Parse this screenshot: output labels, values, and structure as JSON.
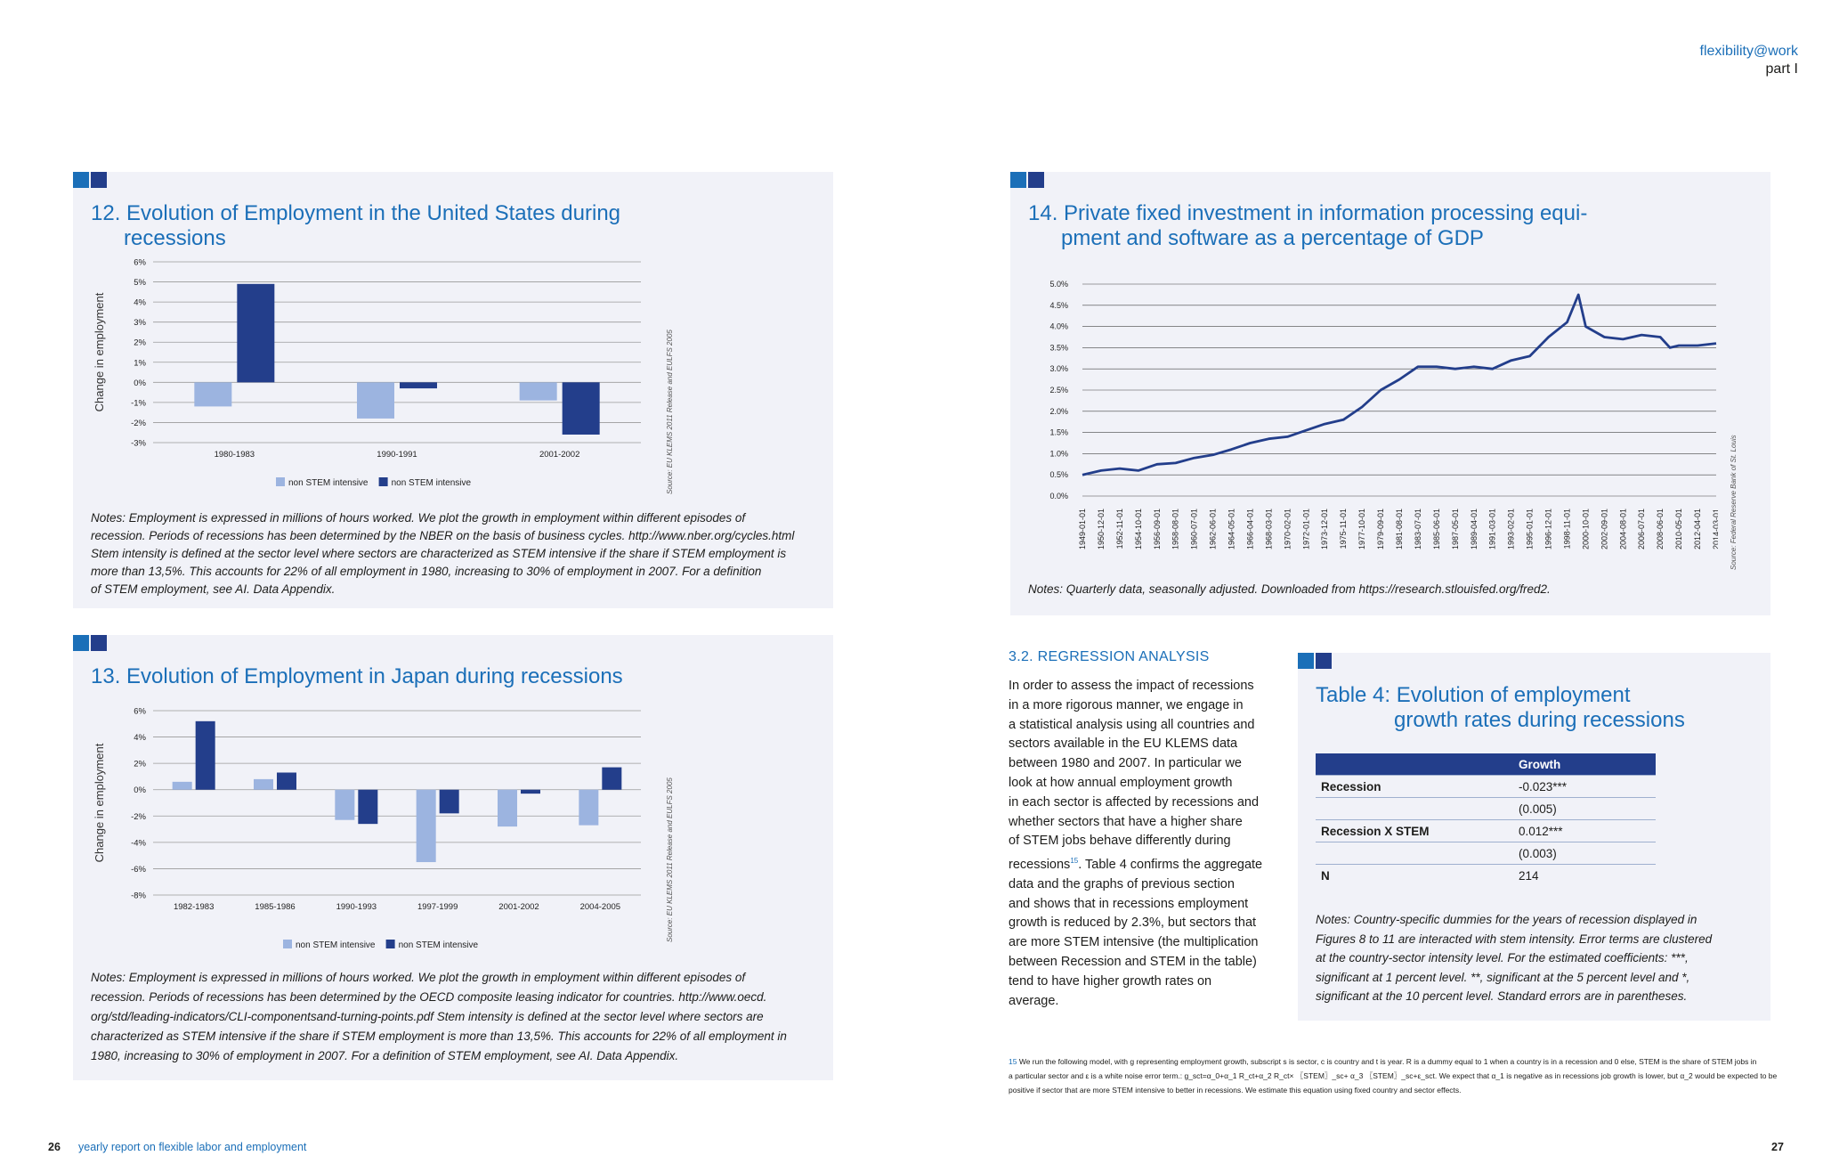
{
  "header": {
    "line1": "flexibility@work",
    "line2": "part I"
  },
  "footer": {
    "left_page": "26",
    "left_text": "yearly report on flexible labor and employment",
    "right_page": "27"
  },
  "colors": {
    "accent": "#1b6fb8",
    "dark_blue": "#233e8b",
    "light_blue": "#9cb4e0",
    "panel": "#f1f2f8"
  },
  "figure12": {
    "title_num": "12.",
    "title_line1": "Evolution of Employment in the United States during",
    "title_line2": "recessions",
    "source": "Source: EU KLEMS 2011 Release and EULFS 2005",
    "notes": [
      "Notes:  Employment is expressed in millions of hours worked. We plot the growth in employment within different episodes of",
      "recession. Periods of recessions has been determined by the NBER on the basis of business cycles. http://www.nber.org/cycles.html",
      "Stem intensity is defined at the sector level where sectors are characterized as STEM intensive if the share if STEM employment is",
      "more than 13,5%. This accounts for 22% of all employment in 1980, increasing to 30% of employment in 2007. For a definition",
      "of STEM employment, see AI. Data Appendix."
    ]
  },
  "figure13": {
    "title_num": "13.",
    "title_line1": "Evolution of Employment in Japan during recessions",
    "source": "Source: EU KLEMS 2011 Release and EULFS 2005",
    "notes": [
      "Notes:  Employment is expressed in millions of hours worked. We plot the growth in employment within different episodes of",
      "recession. Periods of recessions has been determined by the OECD composite leasing indicator for countries. http://www.oecd.",
      "org/std/leading-indicators/CLI-componentsand-turning-points.pdf Stem intensity is defined at the sector level where sectors are",
      "characterized as STEM intensive if the share if STEM employment is more than 13,5%. This accounts for 22% of all employment in",
      "1980, increasing to 30% of employment in 2007. For a definition of STEM employment, see AI. Data Appendix."
    ]
  },
  "figure14": {
    "title_num": "14.",
    "title_line1": "Private fixed investment in information processing equi-",
    "title_line2": "pment and software as a percentage of GDP",
    "source": "Source: Federal Reserve Bank of St. Louis",
    "notes": "Notes: Quarterly data, seasonally adjusted. Downloaded from https://research.stlouisfed.org/fred2."
  },
  "chart_data": [
    {
      "type": "bar",
      "ylabel": "Change in employment",
      "ylim": [
        -3,
        6
      ],
      "yticks": [
        "6%",
        "5%",
        "4%",
        "3%",
        "2%",
        "1%",
        "0%",
        "-1%",
        "-2%",
        "-3%"
      ],
      "categories": [
        "1980-1983",
        "1990-1991",
        "2001-2002"
      ],
      "series": [
        {
          "name": "non STEM intensive",
          "color": "#9cb4e0",
          "values": [
            -1.2,
            -1.8,
            -0.9
          ]
        },
        {
          "name": "non STEM intensive",
          "color": "#233e8b",
          "values": [
            4.9,
            -0.3,
            -2.6
          ]
        }
      ],
      "legend": "bottom",
      "grid": true
    },
    {
      "type": "bar",
      "ylabel": "Change in employment",
      "ylim": [
        -8,
        6
      ],
      "yticks": [
        "6%",
        "4%",
        "2%",
        "0%",
        "-2%",
        "-4%",
        "-6%",
        "-8%"
      ],
      "categories": [
        "1982-1983",
        "1985-1986",
        "1990-1993",
        "1997-1999",
        "2001-2002",
        "2004-2005"
      ],
      "series": [
        {
          "name": "non STEM intensive",
          "color": "#9cb4e0",
          "values": [
            0.6,
            0.8,
            -2.3,
            -5.5,
            -2.8,
            -2.7
          ]
        },
        {
          "name": "non STEM intensive",
          "color": "#233e8b",
          "values": [
            5.2,
            1.3,
            -2.6,
            -1.8,
            -0.3,
            1.7
          ]
        }
      ],
      "legend": "bottom",
      "grid": true
    },
    {
      "type": "line",
      "ylim": [
        0,
        5
      ],
      "yticks": [
        "5.0%",
        "4.5%",
        "4.0%",
        "3.5%",
        "3.0%",
        "2.5%",
        "2.0%",
        "1.5%",
        "1.0%",
        "0.5%",
        "0.0%"
      ],
      "xticks": [
        "1949-01-01",
        "1950-12-01",
        "1952-11-01",
        "1954-10-01",
        "1956-09-01",
        "1958-08-01",
        "1960-07-01",
        "1962-06-01",
        "1964-05-01",
        "1966-04-01",
        "1968-03-01",
        "1970-02-01",
        "1972-01-01",
        "1973-12-01",
        "1975-11-01",
        "1977-10-01",
        "1979-09-01",
        "1981-08-01",
        "1983-07-01",
        "1985-06-01",
        "1987-05-01",
        "1989-04-01",
        "1991-03-01",
        "1993-02-01",
        "1995-01-01",
        "1996-12-01",
        "1998-11-01",
        "2000-10-01",
        "2002-09-01",
        "2004-08-01",
        "2006-07-01",
        "2008-06-01",
        "2010-05-01",
        "2012-04-01",
        "2014-03-01"
      ],
      "series": [
        {
          "color": "#233e8b",
          "x": [
            "1949-01-01",
            "1950-12-01",
            "1952-11-01",
            "1954-10-01",
            "1956-09-01",
            "1958-08-01",
            "1960-07-01",
            "1962-06-01",
            "1964-05-01",
            "1966-04-01",
            "1968-03-01",
            "1970-02-01",
            "1972-01-01",
            "1973-12-01",
            "1975-11-01",
            "1977-10-01",
            "1979-09-01",
            "1981-08-01",
            "1983-07-01",
            "1985-06-01",
            "1987-05-01",
            "1989-04-01",
            "1991-03-01",
            "1993-02-01",
            "1995-01-01",
            "1996-12-01",
            "1998-11-01",
            "2000-01-01",
            "2000-10-01",
            "2002-09-01",
            "2004-08-01",
            "2006-07-01",
            "2008-06-01",
            "2009-06-01",
            "2010-05-01",
            "2012-04-01",
            "2014-03-01"
          ],
          "values": [
            0.5,
            0.6,
            0.65,
            0.6,
            0.75,
            0.78,
            0.9,
            0.97,
            1.1,
            1.25,
            1.35,
            1.4,
            1.55,
            1.7,
            1.8,
            2.1,
            2.5,
            2.75,
            3.05,
            3.05,
            3.0,
            3.05,
            3.0,
            3.2,
            3.3,
            3.75,
            4.1,
            4.75,
            4.0,
            3.75,
            3.7,
            3.8,
            3.75,
            3.5,
            3.55,
            3.55,
            3.6
          ]
        }
      ],
      "grid": true
    }
  ],
  "section": {
    "heading": "3.2. REGRESSION ANALYSIS",
    "lines": [
      "In order to assess the impact of recessions",
      "in a more rigorous manner, we engage in",
      "a statistical analysis using all countries and",
      "sectors available in the EU KLEMS data",
      "between 1980 and 2007. In particular we",
      "look at how annual employment growth",
      "in each sector is affected by recessions and",
      "whether sectors that have a higher share",
      "of STEM jobs behave differently during",
      "recessions",
      "data and the graphs of previous section",
      "and shows that in recessions employment",
      "growth is reduced by 2.3%, but sectors that",
      "are more STEM intensive (the multiplication",
      "between Recession and STEM in the table)",
      "tend to have higher growth rates on",
      "average."
    ],
    "line10_sup": "15",
    "line10_rest": ". Table 4 confirms the aggregate"
  },
  "table4": {
    "title_line1": "Table 4: Evolution of employment",
    "title_line2": "growth rates during recessions",
    "header": "Growth",
    "rows": [
      {
        "label": "Recession",
        "value": "-0.023***"
      },
      {
        "label": "",
        "value": "(0.005)"
      },
      {
        "label": "Recession X STEM",
        "value": "0.012***"
      },
      {
        "label": "",
        "value": "(0.003)"
      },
      {
        "label": "N",
        "value": "214"
      }
    ],
    "notes": [
      "Notes: Country-specific dummies for the years of recession displayed in",
      "Figures 8 to 11 are interacted with stem intensity. Error terms are clustered",
      "at the country-sector intensity level. For the estimated coefficients: ***,",
      "significant at 1 percent level. **, significant at the 5 percent level and *,",
      "significant at the 10 percent level. Standard errors are in parentheses."
    ]
  },
  "footnote": {
    "num": "15",
    "line1": " We run the following model, with g representing employment growth, subscript s is sector, c is country and t is year. R is a dummy equal to 1 when a country is in a recession and 0 else, STEM is the share of STEM jobs in",
    "line2": "a particular sector and ε is a white noise error term.: g_sct=α_0+α_1 R_ct+α_2 R_ct× 〖STEM〗_sc+ α_3 〖STEM〗_sc+ε_sct. We expect that α_1 is negative as in recessions job growth is lower, but α_2 would be expected to be",
    "line3": "positive if sector that are more STEM intensive to better in recessions. We estimate this equation using fixed country and sector effects."
  }
}
